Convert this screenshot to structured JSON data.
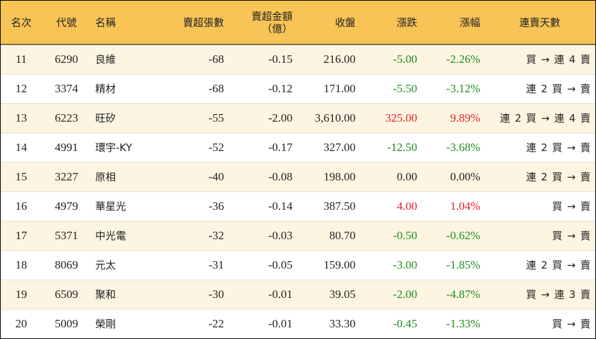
{
  "headers": {
    "rank": "名次",
    "code": "代號",
    "name": "名稱",
    "net_shares": "賣超張數",
    "net_amount_line1": "賣超金額",
    "net_amount_line2": "（億）",
    "close": "收盤",
    "change": "漲跌",
    "change_pct": "漲幅",
    "streak": "連賣天數"
  },
  "colors": {
    "header_bg": "#f9c456",
    "row_alt_bg": "#fdf5e2",
    "up": "#e0202a",
    "down": "#1e8a1e"
  },
  "rows": [
    {
      "rank": "11",
      "code": "6290",
      "name": "良維",
      "net_shares": "-68",
      "net_amount": "-0.15",
      "close": "216.00",
      "change": "-5.00",
      "change_pct": "-2.26%",
      "direction": "down",
      "streak": "買 → 連 4 賣"
    },
    {
      "rank": "12",
      "code": "3374",
      "name": "精材",
      "net_shares": "-68",
      "net_amount": "-0.12",
      "close": "171.00",
      "change": "-5.50",
      "change_pct": "-3.12%",
      "direction": "down",
      "streak": "連 2 買 → 賣"
    },
    {
      "rank": "13",
      "code": "6223",
      "name": "旺矽",
      "net_shares": "-55",
      "net_amount": "-2.00",
      "close": "3,610.00",
      "change": "325.00",
      "change_pct": "9.89%",
      "direction": "up",
      "streak": "連 2 買 → 連 4 賣"
    },
    {
      "rank": "14",
      "code": "4991",
      "name": "環宇-KY",
      "net_shares": "-52",
      "net_amount": "-0.17",
      "close": "327.00",
      "change": "-12.50",
      "change_pct": "-3.68%",
      "direction": "down",
      "streak": "連 2 買 → 賣"
    },
    {
      "rank": "15",
      "code": "3227",
      "name": "原相",
      "net_shares": "-40",
      "net_amount": "-0.08",
      "close": "198.00",
      "change": "0.00",
      "change_pct": "0.00%",
      "direction": "flat",
      "streak": "連 2 買 → 賣"
    },
    {
      "rank": "16",
      "code": "4979",
      "name": "華星光",
      "net_shares": "-36",
      "net_amount": "-0.14",
      "close": "387.50",
      "change": "4.00",
      "change_pct": "1.04%",
      "direction": "up",
      "streak": "買 → 賣"
    },
    {
      "rank": "17",
      "code": "5371",
      "name": "中光電",
      "net_shares": "-32",
      "net_amount": "-0.03",
      "close": "80.70",
      "change": "-0.50",
      "change_pct": "-0.62%",
      "direction": "down",
      "streak": "買 → 賣"
    },
    {
      "rank": "18",
      "code": "8069",
      "name": "元太",
      "net_shares": "-31",
      "net_amount": "-0.05",
      "close": "159.00",
      "change": "-3.00",
      "change_pct": "-1.85%",
      "direction": "down",
      "streak": "連 2 買 → 賣"
    },
    {
      "rank": "19",
      "code": "6509",
      "name": "聚和",
      "net_shares": "-30",
      "net_amount": "-0.01",
      "close": "39.05",
      "change": "-2.00",
      "change_pct": "-4.87%",
      "direction": "down",
      "streak": "買 → 連 3 賣"
    },
    {
      "rank": "20",
      "code": "5009",
      "name": "榮剛",
      "net_shares": "-22",
      "net_amount": "-0.01",
      "close": "33.30",
      "change": "-0.45",
      "change_pct": "-1.33%",
      "direction": "down",
      "streak": "買 → 賣"
    }
  ]
}
